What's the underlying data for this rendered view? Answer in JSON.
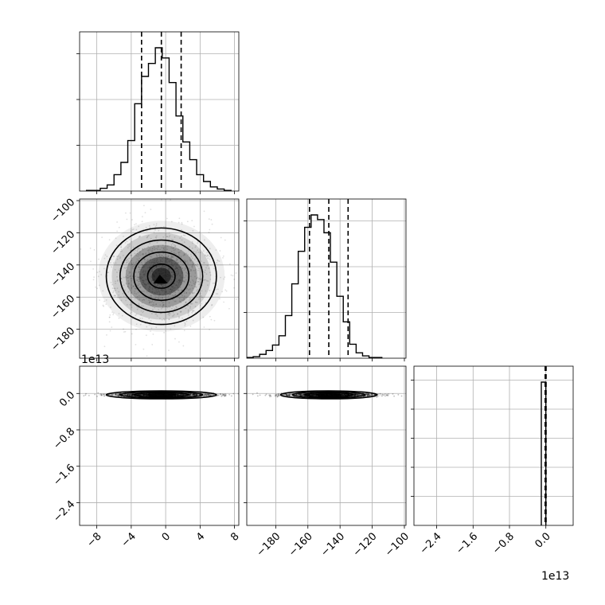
{
  "chart_data": {
    "type": "corner",
    "title": "",
    "parameters": [
      {
        "index": 0,
        "offset_label": "",
        "range": [
          -10,
          8.5
        ],
        "ticks": [
          -8,
          -4,
          0,
          4,
          8
        ],
        "tick_labels": [
          "−8",
          "−4",
          "0",
          "4",
          "8"
        ]
      },
      {
        "index": 1,
        "offset_label": "",
        "range": [
          -198,
          -99
        ],
        "ticks": [
          -180,
          -160,
          -140,
          -120,
          -100
        ],
        "tick_labels": [
          "−180",
          "−160",
          "−140",
          "−120",
          "−100"
        ]
      },
      {
        "index": 2,
        "offset_label": "1e13",
        "range": [
          -2.9,
          0.6
        ],
        "ticks": [
          -2.4,
          -1.6,
          -0.8,
          0.0
        ],
        "tick_labels": [
          "−2.4",
          "−1.6",
          "−0.8",
          "0.0"
        ]
      }
    ],
    "marginals": [
      {
        "param": 0,
        "bin_edges": [
          -9.2,
          -8.4,
          -7.6,
          -6.8,
          -6.0,
          -5.2,
          -4.4,
          -3.6,
          -2.8,
          -2.0,
          -1.2,
          -0.4,
          0.4,
          1.2,
          2.0,
          2.8,
          3.6,
          4.4,
          5.2,
          6.0,
          6.8,
          7.6
        ],
        "counts": [
          1,
          1,
          4,
          9,
          24,
          42,
          74,
          128,
          168,
          187,
          210,
          195,
          159,
          110,
          72,
          46,
          24,
          14,
          6,
          3,
          1
        ],
        "quantiles": [
          -2.8,
          -0.5,
          1.8
        ]
      },
      {
        "param": 1,
        "bin_edges": [
          -198,
          -194,
          -190,
          -186,
          -182,
          -178,
          -174,
          -170,
          -166,
          -162,
          -158,
          -154,
          -150,
          -146,
          -142,
          -138,
          -134,
          -130,
          -126,
          -122,
          -118,
          -114
        ],
        "counts": [
          1,
          2,
          5,
          10,
          17,
          29,
          55,
          96,
          138,
          169,
          185,
          179,
          162,
          124,
          80,
          47,
          18,
          7,
          3,
          1,
          1
        ],
        "quantiles": [
          -159,
          -147,
          -135
        ]
      },
      {
        "param": 2,
        "bin_edges": [
          -0.1,
          0.0
        ],
        "counts": [
          1
        ],
        "quantiles": [
          -0.015,
          0.0,
          0.005
        ]
      }
    ],
    "joint_2d": [
      {
        "x_param": 0,
        "y_param": 1,
        "mean": [
          -0.5,
          -147
        ],
        "sd": [
          3.2,
          15
        ],
        "contour_levels": [
          0.5,
          1.0,
          1.5,
          2.0
        ]
      },
      {
        "x_param": 0,
        "y_param": 2,
        "mean": [
          -0.5,
          -0.03
        ],
        "sd": [
          3.2,
          0.02
        ],
        "contour_levels": [
          0.5,
          1.0,
          1.5,
          2.0
        ]
      },
      {
        "x_param": 1,
        "y_param": 2,
        "mean": [
          -147,
          -0.03
        ],
        "sd": [
          15,
          0.02
        ],
        "contour_levels": [
          0.5,
          1.0,
          1.5,
          2.0
        ]
      }
    ],
    "grid": true,
    "legend": "none"
  }
}
